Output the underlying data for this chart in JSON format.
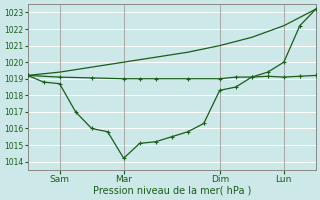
{
  "xlabel": "Pression niveau de la mer( hPa )",
  "bg_color": "#cce8e8",
  "line_color": "#1a5c1a",
  "ylim": [
    1013.5,
    1023.5
  ],
  "yticks": [
    1014,
    1015,
    1016,
    1017,
    1018,
    1019,
    1020,
    1021,
    1022,
    1023
  ],
  "x_tick_labels": [
    "Sam",
    "Mar",
    "Dim",
    "Lun"
  ],
  "x_tick_positions": [
    1.0,
    3.0,
    6.0,
    8.0
  ],
  "x_vlines": [
    1.0,
    3.0,
    6.0,
    8.0
  ],
  "xlim": [
    0.0,
    9.0
  ],
  "x_rising": [
    0.0,
    1.0,
    2.0,
    3.0,
    4.0,
    5.0,
    6.0,
    7.0,
    8.0,
    9.0
  ],
  "y_rising": [
    1019.2,
    1019.4,
    1019.7,
    1020.0,
    1020.3,
    1020.6,
    1021.0,
    1021.5,
    1022.2,
    1023.2
  ],
  "x_flat": [
    0.0,
    1.0,
    2.0,
    3.0,
    3.5,
    4.0,
    5.0,
    6.0,
    6.5,
    7.0,
    7.5,
    8.0,
    8.5,
    9.0
  ],
  "y_flat": [
    1019.2,
    1019.1,
    1019.05,
    1019.0,
    1019.0,
    1019.0,
    1019.0,
    1019.0,
    1019.1,
    1019.1,
    1019.15,
    1019.1,
    1019.15,
    1019.2
  ],
  "x_dip": [
    0.0,
    0.5,
    1.0,
    1.5,
    2.0,
    2.5,
    3.0,
    3.5,
    4.0,
    4.5,
    5.0,
    5.5,
    6.0,
    6.5,
    7.0,
    7.5,
    8.0,
    8.5,
    9.0
  ],
  "y_dip": [
    1019.2,
    1018.8,
    1018.7,
    1017.0,
    1016.0,
    1015.8,
    1014.2,
    1015.1,
    1015.2,
    1015.5,
    1015.8,
    1016.3,
    1018.3,
    1018.5,
    1019.1,
    1019.4,
    1020.0,
    1022.2,
    1023.2
  ]
}
